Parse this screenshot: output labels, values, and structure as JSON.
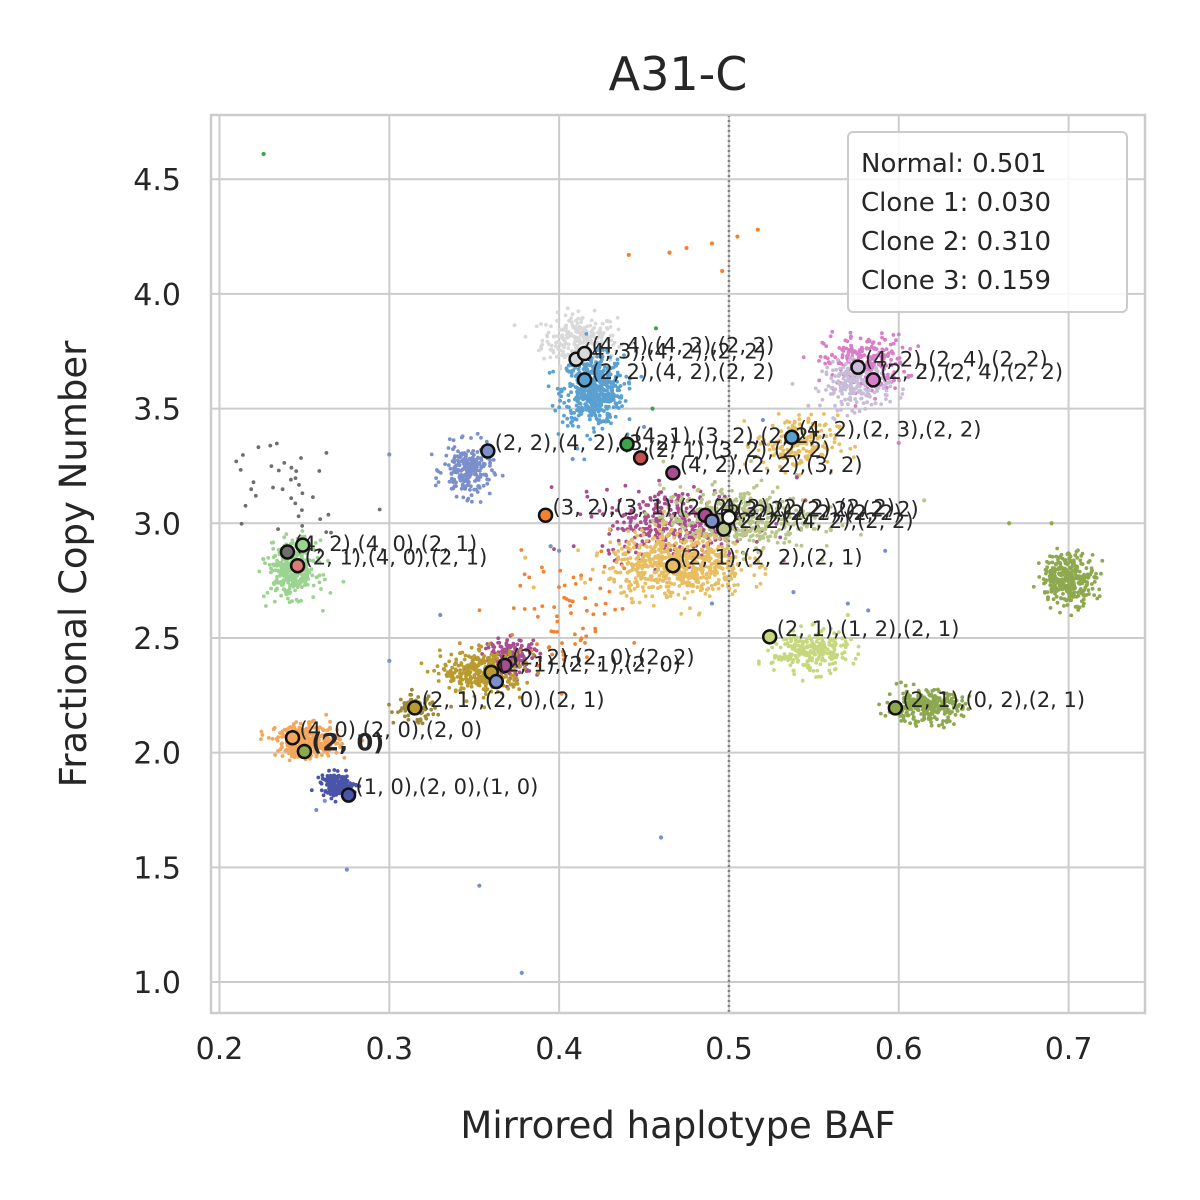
{
  "chart_data": {
    "type": "scatter",
    "title": "A31-C",
    "xlabel": "Mirrored haplotype BAF",
    "ylabel": "Fractional Copy Number",
    "xlim": [
      0.195,
      0.745
    ],
    "ylim": [
      0.865,
      4.78
    ],
    "x_ticks": [
      0.2,
      0.3,
      0.4,
      0.5,
      0.6,
      0.7
    ],
    "x_tick_labels": [
      "0.2",
      "0.3",
      "0.4",
      "0.5",
      "0.6",
      "0.7"
    ],
    "y_ticks": [
      1.0,
      1.5,
      2.0,
      2.5,
      3.0,
      3.5,
      4.0,
      4.5
    ],
    "y_tick_labels": [
      "1.0",
      "1.5",
      "2.0",
      "2.5",
      "3.0",
      "3.5",
      "4.0",
      "4.5"
    ],
    "grid": true,
    "reference_line": {
      "x": 0.5,
      "style": "dotted"
    },
    "legend": {
      "placement": "top-right",
      "entries": [
        "Normal: 0.501",
        "Clone 1: 0.030",
        "Clone 2: 0.310",
        "Clone 3: 0.159"
      ]
    },
    "clusters": [
      {
        "color": "#d9d9d9",
        "x": 0.412,
        "y": 3.8,
        "sx": 0.011,
        "sy": 0.055,
        "n": 260
      },
      {
        "color": "#5aa0d0",
        "x": 0.42,
        "y": 3.58,
        "sx": 0.009,
        "sy": 0.075,
        "n": 520
      },
      {
        "color": "#d77fc9",
        "x": 0.58,
        "y": 3.7,
        "sx": 0.012,
        "sy": 0.06,
        "n": 240
      },
      {
        "color": "#c8bdd8",
        "x": 0.575,
        "y": 3.6,
        "sx": 0.01,
        "sy": 0.05,
        "n": 200
      },
      {
        "color": "#7b8fcb",
        "x": 0.346,
        "y": 3.23,
        "sx": 0.007,
        "sy": 0.055,
        "n": 220
      },
      {
        "color": "#e8be62",
        "x": 0.54,
        "y": 3.35,
        "sx": 0.012,
        "sy": 0.06,
        "n": 180
      },
      {
        "color": "#a84e8f",
        "x": 0.47,
        "y": 3.0,
        "sx": 0.022,
        "sy": 0.075,
        "n": 380
      },
      {
        "color": "#b9c68a",
        "x": 0.505,
        "y": 3.02,
        "sx": 0.022,
        "sy": 0.07,
        "n": 380
      },
      {
        "color": "#e8be62",
        "x": 0.47,
        "y": 2.82,
        "sx": 0.02,
        "sy": 0.07,
        "n": 620
      },
      {
        "color": "#9bd391",
        "x": 0.243,
        "y": 2.8,
        "sx": 0.007,
        "sy": 0.06,
        "n": 330
      },
      {
        "color": "#c6d87e",
        "x": 0.548,
        "y": 2.44,
        "sx": 0.011,
        "sy": 0.045,
        "n": 260
      },
      {
        "color": "#8ea84f",
        "x": 0.7,
        "y": 2.76,
        "sx": 0.008,
        "sy": 0.055,
        "n": 320
      },
      {
        "color": "#8ea84f",
        "x": 0.615,
        "y": 2.2,
        "sx": 0.011,
        "sy": 0.035,
        "n": 300
      },
      {
        "color": "#a84e8f",
        "x": 0.372,
        "y": 2.42,
        "sx": 0.008,
        "sy": 0.04,
        "n": 180
      },
      {
        "color": "#b89a2e",
        "x": 0.355,
        "y": 2.35,
        "sx": 0.012,
        "sy": 0.045,
        "n": 320
      },
      {
        "color": "#9c8a3c",
        "x": 0.315,
        "y": 2.19,
        "sx": 0.006,
        "sy": 0.03,
        "n": 80
      },
      {
        "color": "#f3a75c",
        "x": 0.252,
        "y": 2.05,
        "sx": 0.009,
        "sy": 0.035,
        "n": 380
      },
      {
        "color": "#4b55a8",
        "x": 0.27,
        "y": 1.86,
        "sx": 0.005,
        "sy": 0.025,
        "n": 150
      },
      {
        "color": "#f28230",
        "x": 0.4,
        "y": 2.6,
        "sx": 0.02,
        "sy": 0.12,
        "n": 70
      },
      {
        "color": "#6e6e6e",
        "x": 0.24,
        "y": 3.2,
        "sx": 0.02,
        "sy": 0.12,
        "n": 40
      }
    ],
    "scatter_extra": [
      {
        "x": 0.226,
        "y": 4.61,
        "color": "#3ca54b"
      },
      {
        "x": 0.441,
        "y": 4.17,
        "color": "#f28230"
      },
      {
        "x": 0.465,
        "y": 4.18,
        "color": "#f28230"
      },
      {
        "x": 0.475,
        "y": 4.2,
        "color": "#f28230"
      },
      {
        "x": 0.49,
        "y": 4.22,
        "color": "#f28230"
      },
      {
        "x": 0.505,
        "y": 4.25,
        "color": "#f28230"
      },
      {
        "x": 0.517,
        "y": 4.28,
        "color": "#f28230"
      },
      {
        "x": 0.496,
        "y": 4.1,
        "color": "#f28230"
      },
      {
        "x": 0.353,
        "y": 1.42,
        "color": "#7b8fcb"
      },
      {
        "x": 0.46,
        "y": 1.63,
        "color": "#7b8fcb"
      },
      {
        "x": 0.378,
        "y": 1.04,
        "color": "#7b8fcb"
      },
      {
        "x": 0.275,
        "y": 1.49,
        "color": "#7b8fcb"
      },
      {
        "x": 0.457,
        "y": 3.85,
        "color": "#3ca54b"
      },
      {
        "x": 0.455,
        "y": 3.5,
        "color": "#3ca54b"
      },
      {
        "x": 0.545,
        "y": 3.1,
        "color": "#c4514f"
      },
      {
        "x": 0.665,
        "y": 3.0,
        "color": "#8ea84f"
      },
      {
        "x": 0.69,
        "y": 3.0,
        "color": "#8ea84f"
      },
      {
        "x": 0.592,
        "y": 2.88,
        "color": "#7b8fcb"
      },
      {
        "x": 0.582,
        "y": 2.62,
        "color": "#7b8fcb"
      },
      {
        "x": 0.538,
        "y": 2.7,
        "color": "#7b8fcb"
      },
      {
        "x": 0.57,
        "y": 2.65,
        "color": "#7b8fcb"
      },
      {
        "x": 0.4,
        "y": 2.88,
        "color": "#7b8fcb"
      },
      {
        "x": 0.395,
        "y": 2.9,
        "color": "#7b8fcb"
      },
      {
        "x": 0.408,
        "y": 3.28,
        "color": "#7b8fcb"
      },
      {
        "x": 0.3,
        "y": 3.3,
        "color": "#7b8fcb"
      },
      {
        "x": 0.33,
        "y": 2.6,
        "color": "#7b8fcb"
      },
      {
        "x": 0.3,
        "y": 2.4,
        "color": "#7b8fcb"
      },
      {
        "x": 0.49,
        "y": 2.65,
        "color": "#7b8fcb"
      },
      {
        "x": 0.52,
        "y": 3.45,
        "color": "#7b8fcb"
      },
      {
        "x": 0.45,
        "y": 3.42,
        "color": "#7b8fcb"
      },
      {
        "x": 0.54,
        "y": 3.2,
        "color": "#a84e8f"
      },
      {
        "x": 0.6,
        "y": 3.35,
        "color": "#d77fc9"
      },
      {
        "x": 0.615,
        "y": 3.1,
        "color": "#b9c68a"
      },
      {
        "x": 0.56,
        "y": 2.97,
        "color": "#b9c68a"
      },
      {
        "x": 0.257,
        "y": 1.75,
        "color": "#7b8fcb"
      },
      {
        "x": 0.262,
        "y": 1.79,
        "color": "#7b8fcb"
      },
      {
        "x": 0.38,
        "y": 2.85,
        "color": "#e8be62"
      },
      {
        "x": 0.385,
        "y": 2.72,
        "color": "#e8be62"
      },
      {
        "x": 0.57,
        "y": 2.6,
        "color": "#c6d87e"
      }
    ],
    "points": [
      {
        "x": 0.41,
        "y": 3.715,
        "color": "#d9d9d9",
        "label": "(4, 3),(4, 2),(2, 2)"
      },
      {
        "x": 0.415,
        "y": 3.74,
        "color": "#d9d9d9",
        "label": "(4, 4),(4, 2),(2, 2)"
      },
      {
        "x": 0.415,
        "y": 3.625,
        "color": "#5aa0d0",
        "label": "(2, 2),(4, 2),(2, 2)"
      },
      {
        "x": 0.576,
        "y": 3.68,
        "color": "#c8bdd8",
        "label": "(4, 2),(2, 4),(2, 2)"
      },
      {
        "x": 0.585,
        "y": 3.625,
        "color": "#d77fc9",
        "label": "(2, 2),(2, 4),(2, 2)"
      },
      {
        "x": 0.358,
        "y": 3.315,
        "color": "#7b8fcb",
        "label": "(2, 2),(4, 2),(3, 2)"
      },
      {
        "x": 0.44,
        "y": 3.345,
        "color": "#3ca54b",
        "label": "(4, 1),(3, 2),(2, 2)"
      },
      {
        "x": 0.448,
        "y": 3.285,
        "color": "#c4514f",
        "label": "(2, 1),(3, 2),(2, 2)"
      },
      {
        "x": 0.467,
        "y": 3.22,
        "color": "#a84e8f",
        "label": "(4, 2),(2, 2),(3, 2)"
      },
      {
        "x": 0.537,
        "y": 3.375,
        "color": "#5aa0d0",
        "label": "(4, 2),(2, 3),(2, 2)"
      },
      {
        "x": 0.392,
        "y": 3.035,
        "color": "#f28230",
        "label": "(3, 2),(3, 1),(2, 2)"
      },
      {
        "x": 0.486,
        "y": 3.035,
        "color": "#a84e8f",
        "label": "(4, 2),(2, 2),(2, 2)"
      },
      {
        "x": 0.49,
        "y": 3.01,
        "color": "#7b8fcb",
        "label": "(2, 2),(2, 2),(2, 2)"
      },
      {
        "x": 0.497,
        "y": 2.975,
        "color": "#b9c68a",
        "label": "(2, 2),(4, 2),(2, 2)"
      },
      {
        "x": 0.5,
        "y": 3.025,
        "color": "#ffffff",
        "label": "(3, 2),(2, 2),(2, 2)"
      },
      {
        "x": 0.467,
        "y": 2.815,
        "color": "#e8be62",
        "label": "(2, 1),(2, 2),(2, 1)"
      },
      {
        "x": 0.24,
        "y": 2.875,
        "color": "#6e6e6e",
        "label": "(4, 2),(4, 0),(2, 1)"
      },
      {
        "x": 0.249,
        "y": 2.905,
        "color": "#9bd391",
        "label": ""
      },
      {
        "x": 0.246,
        "y": 2.815,
        "color": "#e07a78",
        "label": "(2, 1),(4, 0),(2, 1)"
      },
      {
        "x": 0.524,
        "y": 2.505,
        "color": "#c6d87e",
        "label": "(2, 1),(1, 2),(2, 1)"
      },
      {
        "x": 0.598,
        "y": 2.195,
        "color": "#8ea84f",
        "label": "(2, 1),(0, 2),(2, 1)"
      },
      {
        "x": 0.368,
        "y": 2.38,
        "color": "#a84e8f",
        "label": "(2, 2),(2, 0),(2, 2)"
      },
      {
        "x": 0.36,
        "y": 2.35,
        "color": "#b89a2e",
        "label": "(2, 1),(2, 1),(2, 0)"
      },
      {
        "x": 0.363,
        "y": 2.31,
        "color": "#7b8fcb",
        "label": ""
      },
      {
        "x": 0.315,
        "y": 2.195,
        "color": "#b89a2e",
        "label": "(2, 1),(2, 0),(2, 1)"
      },
      {
        "x": 0.243,
        "y": 2.065,
        "color": "#f3a75c",
        "label": "(4, 0),(2, 0),(2, 0)"
      },
      {
        "x": 0.25,
        "y": 2.005,
        "color": "#8ea84f",
        "label": "(2, 0)",
        "bold": true
      },
      {
        "x": 0.276,
        "y": 1.815,
        "color": "#4b55a8",
        "label": "(1, 0),(2, 0),(1, 0)"
      }
    ]
  }
}
